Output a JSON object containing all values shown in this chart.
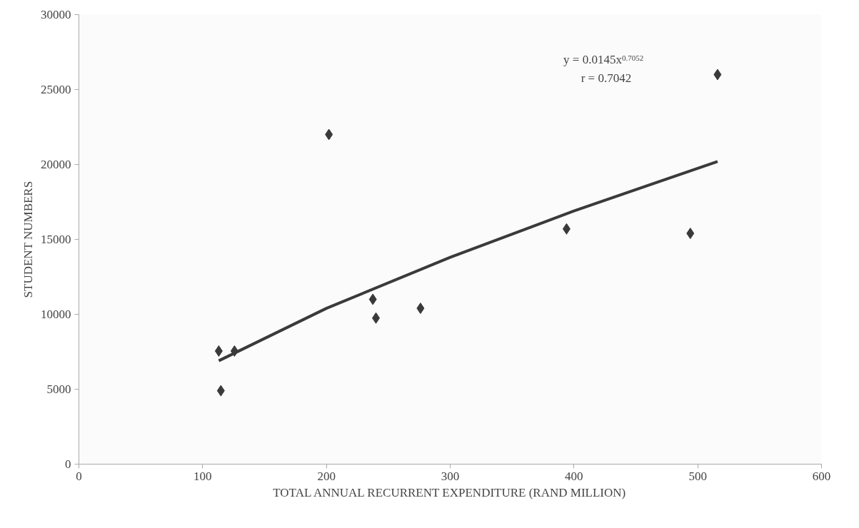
{
  "chart_data": {
    "type": "scatter",
    "xlabel": "TOTAL ANNUAL RECURRENT EXPENDITURE (RAND MILLION)",
    "ylabel": "STUDENT NUMBERS",
    "xlim": [
      0,
      600
    ],
    "xticks": [
      0,
      100,
      200,
      300,
      400,
      500,
      600
    ],
    "ylim": [
      0,
      30000
    ],
    "yticks": [
      0,
      5000,
      10000,
      15000,
      20000,
      25000,
      30000
    ],
    "grid": false,
    "annotations": [
      "y = 0.0145x$^{0.7052}$",
      "r = 0.7042"
    ],
    "series": [
      {
        "marker": "diamond",
        "color": "#3a3a3a",
        "x": [
          113,
          114.7,
          125.7,
          202,
          237.5,
          240,
          276,
          394,
          494,
          516
        ],
        "values": [
          7550,
          4900,
          7550,
          22000,
          11000,
          9750,
          10400,
          15700,
          15400,
          26000
        ]
      },
      {
        "type": "line",
        "color": "#3a3a3a",
        "line_style": "solid",
        "x": [
          113,
          200,
          300,
          400,
          516
        ],
        "values": [
          6900,
          10400,
          13800,
          16900,
          20200
        ]
      }
    ]
  }
}
